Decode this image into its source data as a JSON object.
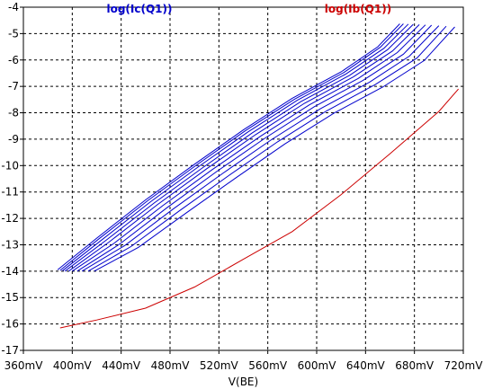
{
  "chart_data": {
    "type": "line",
    "title": "",
    "xlabel": "V(BE)",
    "ylabel": "",
    "xlim": [
      360,
      720
    ],
    "ylim": [
      -17,
      -4
    ],
    "grid": true,
    "x_tick_labels": [
      "360mV",
      "400mV",
      "440mV",
      "480mV",
      "520mV",
      "560mV",
      "600mV",
      "640mV",
      "680mV",
      "720mV"
    ],
    "y_tick_labels": [
      "-4",
      "-5",
      "-6",
      "-7",
      "-8",
      "-9",
      "-10",
      "-11",
      "-12",
      "-13",
      "-14",
      "-15",
      "-16",
      "-17"
    ],
    "trace_labels": [
      {
        "text": "log(Ic(Q1))",
        "color": "#0000cc"
      },
      {
        "text": "log(Ib(Q1))",
        "color": "#cc0000"
      }
    ],
    "series": [
      {
        "color": "#cc0000",
        "points": [
          [
            390,
            -16.15
          ],
          [
            420,
            -15.85
          ],
          [
            460,
            -15.4
          ],
          [
            500,
            -14.6
          ],
          [
            540,
            -13.55
          ],
          [
            580,
            -12.5
          ],
          [
            620,
            -11.1
          ],
          [
            660,
            -9.55
          ],
          [
            700,
            -7.95
          ],
          [
            716,
            -7.1
          ]
        ]
      },
      {
        "color": "#0000cc",
        "points": [
          [
            388,
            -13.95
          ],
          [
            420,
            -12.75
          ],
          [
            460,
            -11.3
          ],
          [
            500,
            -9.95
          ],
          [
            540,
            -8.65
          ],
          [
            580,
            -7.45
          ],
          [
            620,
            -6.45
          ],
          [
            650,
            -5.5
          ],
          [
            668,
            -4.63
          ]
        ]
      },
      {
        "color": "#0000cc",
        "points": [
          [
            390,
            -13.97
          ],
          [
            422,
            -12.77
          ],
          [
            462,
            -11.32
          ],
          [
            502,
            -9.97
          ],
          [
            542,
            -8.67
          ],
          [
            582,
            -7.48
          ],
          [
            622,
            -6.48
          ],
          [
            652,
            -5.52
          ],
          [
            671,
            -4.63
          ]
        ]
      },
      {
        "color": "#0000cc",
        "points": [
          [
            392,
            -13.98
          ],
          [
            424,
            -12.82
          ],
          [
            464,
            -11.37
          ],
          [
            504,
            -10.02
          ],
          [
            544,
            -8.72
          ],
          [
            584,
            -7.53
          ],
          [
            624,
            -6.53
          ],
          [
            655,
            -5.56
          ],
          [
            675,
            -4.64
          ]
        ]
      },
      {
        "color": "#0000cc",
        "points": [
          [
            394,
            -14.0
          ],
          [
            427,
            -12.85
          ],
          [
            467,
            -11.42
          ],
          [
            507,
            -10.07
          ],
          [
            547,
            -8.77
          ],
          [
            587,
            -7.58
          ],
          [
            627,
            -6.58
          ],
          [
            658,
            -5.61
          ],
          [
            679,
            -4.65
          ]
        ]
      },
      {
        "color": "#0000cc",
        "points": [
          [
            397,
            -14.0
          ],
          [
            430,
            -12.9
          ],
          [
            470,
            -11.47
          ],
          [
            510,
            -10.12
          ],
          [
            550,
            -8.83
          ],
          [
            590,
            -7.64
          ],
          [
            630,
            -6.64
          ],
          [
            662,
            -5.66
          ],
          [
            684,
            -4.66
          ]
        ]
      },
      {
        "color": "#0000cc",
        "points": [
          [
            400,
            -14.0
          ],
          [
            434,
            -12.95
          ],
          [
            474,
            -11.52
          ],
          [
            514,
            -10.17
          ],
          [
            554,
            -8.89
          ],
          [
            594,
            -7.7
          ],
          [
            634,
            -6.7
          ],
          [
            666,
            -5.72
          ],
          [
            689,
            -4.67
          ]
        ]
      },
      {
        "color": "#0000cc",
        "points": [
          [
            404,
            -14.0
          ],
          [
            438,
            -13.0
          ],
          [
            478,
            -11.58
          ],
          [
            518,
            -10.23
          ],
          [
            558,
            -8.95
          ],
          [
            598,
            -7.77
          ],
          [
            638,
            -6.77
          ],
          [
            671,
            -5.78
          ],
          [
            694,
            -4.68
          ]
        ]
      },
      {
        "color": "#0000cc",
        "points": [
          [
            408,
            -14.0
          ],
          [
            443,
            -13.03
          ],
          [
            483,
            -11.63
          ],
          [
            523,
            -10.3
          ],
          [
            563,
            -9.02
          ],
          [
            603,
            -7.85
          ],
          [
            643,
            -6.85
          ],
          [
            676,
            -5.85
          ],
          [
            700,
            -4.7
          ]
        ]
      },
      {
        "color": "#0000cc",
        "points": [
          [
            413,
            -14.0
          ],
          [
            448,
            -13.07
          ],
          [
            488,
            -11.7
          ],
          [
            528,
            -10.38
          ],
          [
            568,
            -9.1
          ],
          [
            608,
            -7.93
          ],
          [
            648,
            -6.93
          ],
          [
            682,
            -5.93
          ],
          [
            706,
            -4.72
          ]
        ]
      },
      {
        "color": "#0000cc",
        "points": [
          [
            418,
            -14.0
          ],
          [
            454,
            -13.1
          ],
          [
            494,
            -11.77
          ],
          [
            534,
            -10.46
          ],
          [
            574,
            -9.18
          ],
          [
            614,
            -8.02
          ],
          [
            654,
            -7.03
          ],
          [
            688,
            -6.02
          ],
          [
            713,
            -4.75
          ]
        ]
      }
    ]
  }
}
